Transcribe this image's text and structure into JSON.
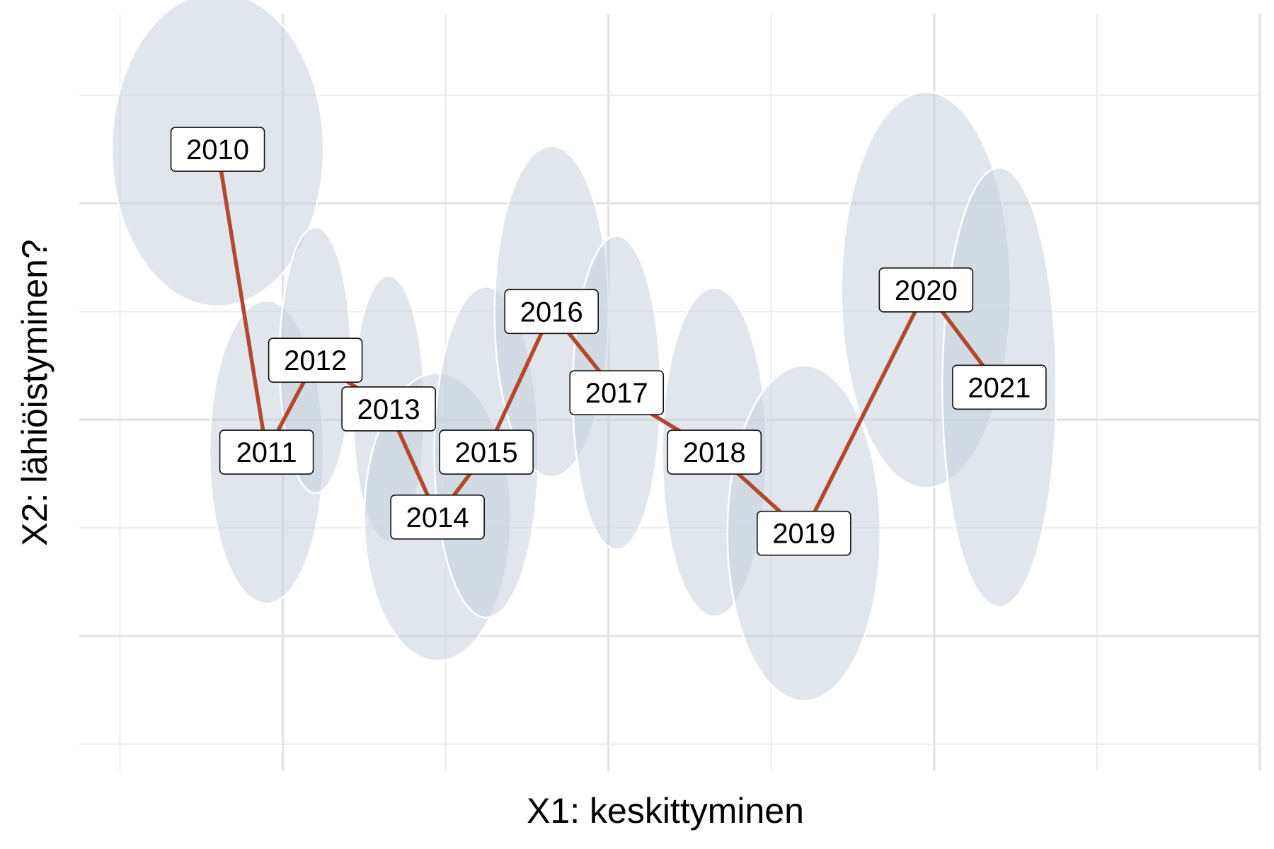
{
  "chart_data": {
    "type": "scatter",
    "xlabel": "X1: keskittyminen",
    "ylabel": "X2: lähiöistyminen?",
    "xlim": [
      0.5,
      7.75
    ],
    "ylim": [
      -5.25,
      1.75
    ],
    "grid": true,
    "tick_labels": "none",
    "colors": {
      "line": "#b4472e",
      "ellipse": "#c7d2dd",
      "grid": "#e3e3e3"
    },
    "points": [
      {
        "label": "2010",
        "x": 1.35,
        "y": 0.5,
        "ellipse_half_width": 0.65,
        "ellipse_half_height": 1.45
      },
      {
        "label": "2011",
        "x": 1.65,
        "y": -2.3,
        "ellipse_half_width": 0.35,
        "ellipse_half_height": 1.4
      },
      {
        "label": "2012",
        "x": 1.95,
        "y": -1.45,
        "ellipse_half_width": 0.22,
        "ellipse_half_height": 1.23
      },
      {
        "label": "2013",
        "x": 2.4,
        "y": -1.9,
        "ellipse_half_width": 0.22,
        "ellipse_half_height": 1.23
      },
      {
        "label": "2014",
        "x": 2.7,
        "y": -2.9,
        "ellipse_half_width": 0.45,
        "ellipse_half_height": 1.33
      },
      {
        "label": "2015",
        "x": 3.0,
        "y": -2.3,
        "ellipse_half_width": 0.32,
        "ellipse_half_height": 1.53
      },
      {
        "label": "2016",
        "x": 3.4,
        "y": -1.0,
        "ellipse_half_width": 0.35,
        "ellipse_half_height": 1.53
      },
      {
        "label": "2017",
        "x": 3.8,
        "y": -1.75,
        "ellipse_half_width": 0.27,
        "ellipse_half_height": 1.45
      },
      {
        "label": "2018",
        "x": 4.4,
        "y": -2.3,
        "ellipse_half_width": 0.32,
        "ellipse_half_height": 1.52
      },
      {
        "label": "2019",
        "x": 4.95,
        "y": -3.05,
        "ellipse_half_width": 0.47,
        "ellipse_half_height": 1.55
      },
      {
        "label": "2020",
        "x": 5.7,
        "y": -0.8,
        "ellipse_half_width": 0.52,
        "ellipse_half_height": 1.83
      },
      {
        "label": "2021",
        "x": 6.15,
        "y": -1.7,
        "ellipse_half_width": 0.35,
        "ellipse_half_height": 2.03
      }
    ]
  }
}
